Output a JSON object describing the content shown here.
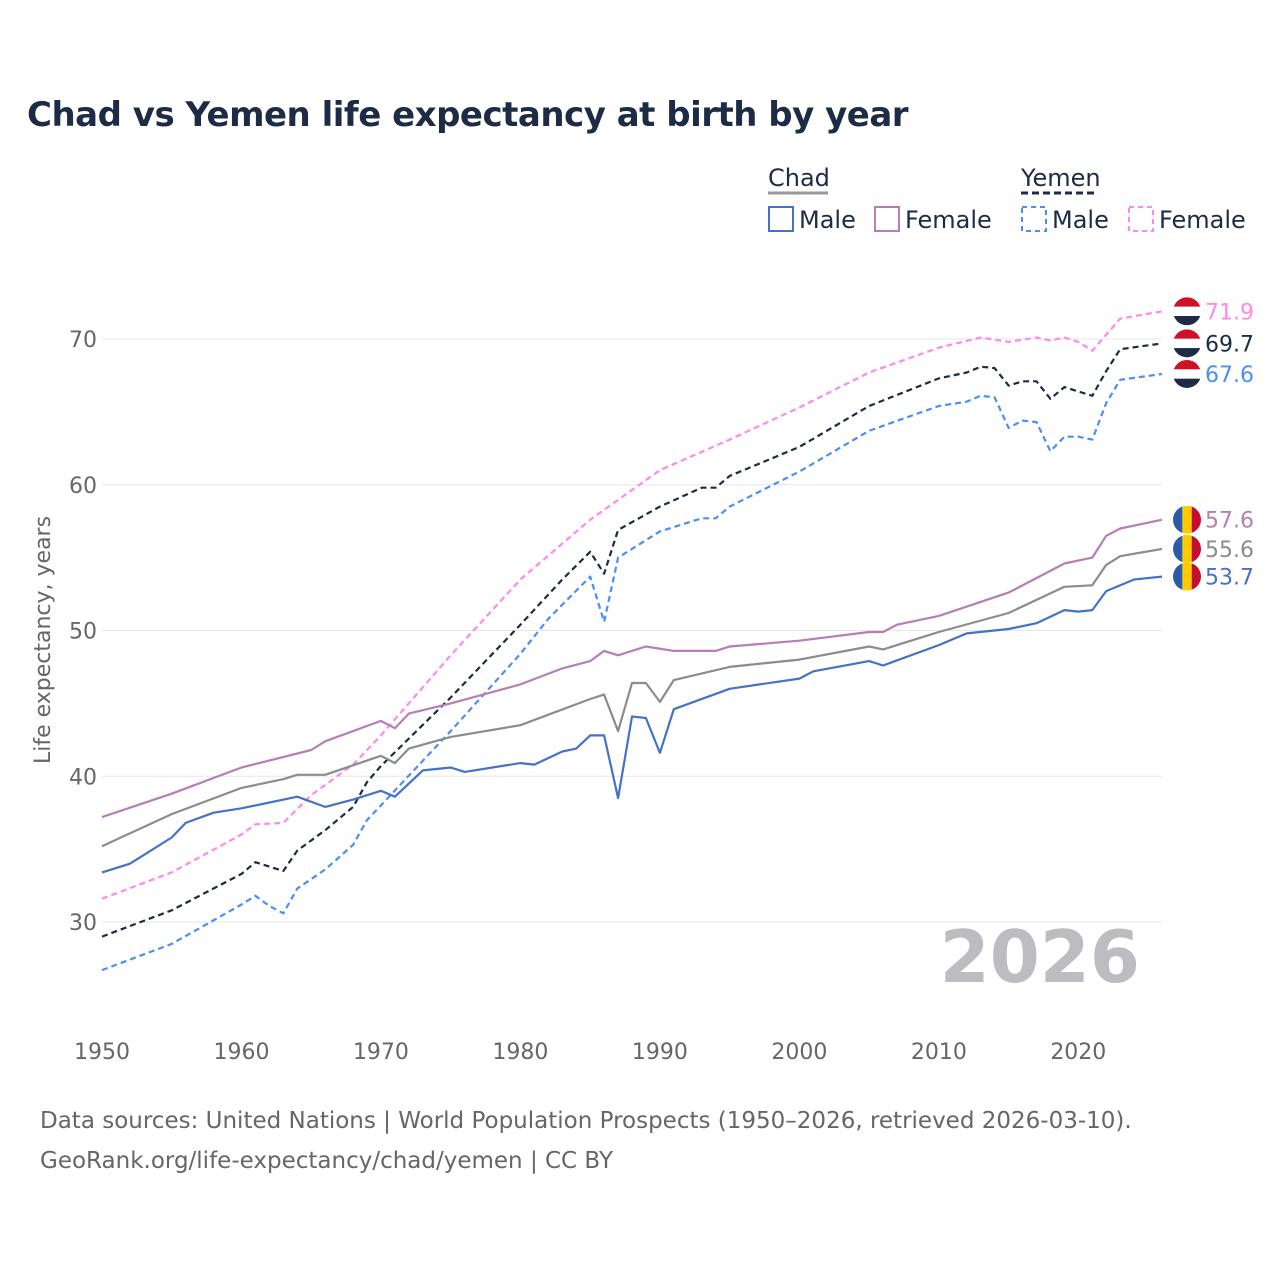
{
  "title": "Chad vs Yemen life expectancy at birth by year",
  "source_line1": "Data sources: United Nations | World Population Prospects (1950–2026, retrieved 2026-03-10).",
  "source_line2": "GeoRank.org/life-expectancy/chad/yemen | CC BY",
  "watermark_year": "2026",
  "legend": {
    "chad": "Chad",
    "yemen": "Yemen",
    "male": "Male",
    "female": "Female"
  },
  "chart_data": {
    "type": "line",
    "title": "Chad vs Yemen life expectancy at birth by year",
    "xlabel": "",
    "ylabel": "Life expectancy, years",
    "xlim": [
      1950,
      2026
    ],
    "ylim": [
      25,
      75
    ],
    "xticks": [
      1950,
      1960,
      1970,
      1980,
      1990,
      2000,
      2010,
      2020
    ],
    "yticks": [
      30,
      40,
      50,
      60,
      70
    ],
    "grid": true,
    "legend_position": "top-right",
    "series": [
      {
        "name": "Yemen Female",
        "color": "#ff88ee",
        "dash": true,
        "end_label": "71.9",
        "flag": "yemen",
        "x": [
          1950,
          1955,
          1960,
          1961,
          1963,
          1965,
          1968,
          1970,
          1975,
          1980,
          1985,
          1990,
          1995,
          2000,
          2005,
          2010,
          2013,
          2015,
          2017,
          2018,
          2019,
          2020,
          2021,
          2023,
          2026
        ],
        "y": [
          31.6,
          33.4,
          36.0,
          36.7,
          36.8,
          38.7,
          40.8,
          42.8,
          48.3,
          53.5,
          57.6,
          61.0,
          63.1,
          65.3,
          67.7,
          69.4,
          70.1,
          69.8,
          70.1,
          69.9,
          70.1,
          69.8,
          69.2,
          71.4,
          71.9
        ]
      },
      {
        "name": "Yemen",
        "color": "#1d2b44",
        "dash": true,
        "end_label": "69.7",
        "flag": "yemen",
        "x": [
          1950,
          1955,
          1960,
          1961,
          1963,
          1964,
          1966,
          1968,
          1969,
          1970,
          1975,
          1980,
          1983,
          1985,
          1986,
          1987,
          1990,
          1993,
          1994,
          1995,
          2000,
          2005,
          2010,
          2012,
          2013,
          2014,
          2015,
          2016,
          2017,
          2018,
          2019,
          2021,
          2022,
          2023,
          2026
        ],
        "y": [
          29.0,
          30.8,
          33.3,
          34.1,
          33.5,
          34.9,
          36.3,
          37.9,
          39.6,
          40.7,
          45.4,
          50.4,
          53.5,
          55.4,
          53.9,
          56.9,
          58.5,
          59.8,
          59.8,
          60.6,
          62.6,
          65.4,
          67.3,
          67.7,
          68.1,
          68.0,
          66.8,
          67.1,
          67.1,
          65.9,
          66.7,
          66.1,
          67.8,
          69.3,
          69.7
        ]
      },
      {
        "name": "Yemen Male",
        "color": "#4b8ef5",
        "dash": true,
        "end_label": "67.6",
        "flag": "yemen",
        "x": [
          1950,
          1955,
          1960,
          1961,
          1962,
          1963,
          1964,
          1966,
          1968,
          1969,
          1970,
          1975,
          1980,
          1982,
          1985,
          1986,
          1987,
          1990,
          1993,
          1994,
          1995,
          2000,
          2005,
          2010,
          2012,
          2013,
          2014,
          2015,
          2016,
          2017,
          2018,
          2019,
          2020,
          2021,
          2022,
          2023,
          2026
        ],
        "y": [
          26.7,
          28.5,
          31.2,
          31.8,
          31.1,
          30.6,
          32.3,
          33.6,
          35.3,
          37.0,
          38.0,
          43.1,
          48.4,
          50.8,
          53.7,
          50.6,
          55.0,
          56.8,
          57.7,
          57.7,
          58.5,
          60.9,
          63.7,
          65.4,
          65.7,
          66.1,
          66.0,
          63.9,
          64.4,
          64.3,
          62.3,
          63.3,
          63.3,
          63.1,
          65.6,
          67.2,
          67.6
        ]
      },
      {
        "name": "Chad Female",
        "color": "#b87db5",
        "dash": false,
        "end_label": "57.6",
        "flag": "chad",
        "x": [
          1950,
          1955,
          1960,
          1965,
          1966,
          1970,
          1971,
          1972,
          1975,
          1980,
          1983,
          1985,
          1986,
          1987,
          1989,
          1991,
          1994,
          1995,
          2000,
          2005,
          2006,
          2007,
          2010,
          2015,
          2019,
          2021,
          2022,
          2023,
          2026
        ],
        "y": [
          37.2,
          38.8,
          40.6,
          41.8,
          42.4,
          43.8,
          43.3,
          44.3,
          45.0,
          46.3,
          47.4,
          47.9,
          48.6,
          48.3,
          48.9,
          48.6,
          48.6,
          48.9,
          49.3,
          49.9,
          49.9,
          50.4,
          51.0,
          52.6,
          54.6,
          55.0,
          56.5,
          57.0,
          57.6
        ]
      },
      {
        "name": "Chad",
        "color": "#8c8c8c",
        "dash": false,
        "end_label": "55.6",
        "flag": "chad",
        "x": [
          1950,
          1955,
          1960,
          1963,
          1964,
          1966,
          1970,
          1971,
          1972,
          1975,
          1980,
          1985,
          1986,
          1987,
          1988,
          1989,
          1990,
          1991,
          1995,
          2000,
          2005,
          2006,
          2010,
          2015,
          2019,
          2021,
          2022,
          2023,
          2026
        ],
        "y": [
          35.2,
          37.4,
          39.2,
          39.8,
          40.1,
          40.1,
          41.4,
          40.9,
          41.9,
          42.7,
          43.5,
          45.3,
          45.6,
          43.1,
          46.4,
          46.4,
          45.1,
          46.6,
          47.5,
          48.0,
          48.9,
          48.7,
          49.9,
          51.2,
          53.0,
          53.1,
          54.5,
          55.1,
          55.6
        ]
      },
      {
        "name": "Chad Male",
        "color": "#4472c4",
        "dash": false,
        "end_label": "53.7",
        "flag": "chad",
        "x": [
          1950,
          1952,
          1955,
          1956,
          1958,
          1960,
          1964,
          1966,
          1968,
          1970,
          1971,
          1973,
          1975,
          1976,
          1980,
          1981,
          1983,
          1984,
          1985,
          1986,
          1987,
          1988,
          1989,
          1990,
          1991,
          1995,
          2000,
          2001,
          2005,
          2006,
          2010,
          2012,
          2015,
          2017,
          2019,
          2020,
          2021,
          2022,
          2024,
          2026
        ],
        "y": [
          33.4,
          34.0,
          35.8,
          36.8,
          37.5,
          37.8,
          38.6,
          37.9,
          38.4,
          39.0,
          38.6,
          40.4,
          40.6,
          40.3,
          40.9,
          40.8,
          41.7,
          41.9,
          42.8,
          42.8,
          38.5,
          44.1,
          44.0,
          41.6,
          44.6,
          46.0,
          46.7,
          47.2,
          47.9,
          47.6,
          49.0,
          49.8,
          50.1,
          50.5,
          51.4,
          51.3,
          51.4,
          52.7,
          53.5,
          53.7
        ]
      }
    ]
  }
}
